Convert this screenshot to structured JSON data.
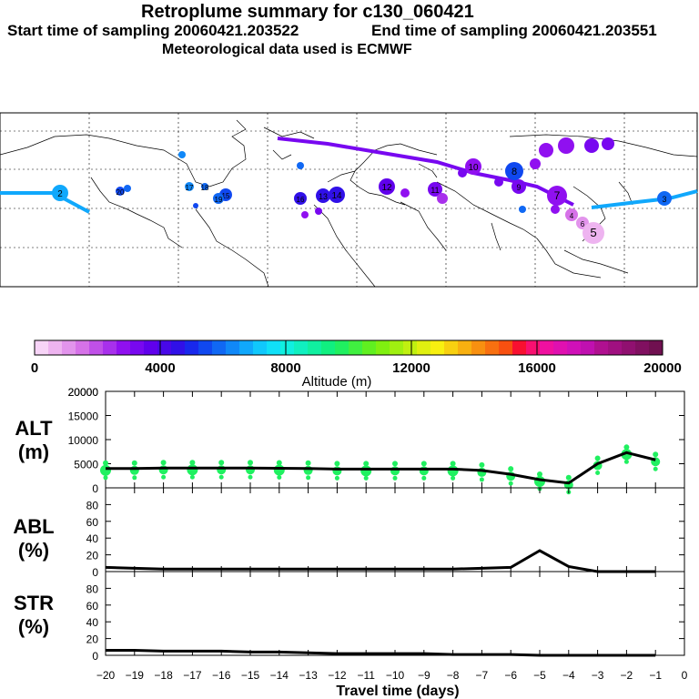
{
  "header": {
    "title": "Retroplume summary for c130_060421",
    "start": "Start time of sampling 20060421.203522",
    "end": "End time of sampling 20060421.203551",
    "met": "Meteorological data used is ECMWF"
  },
  "colorbar": {
    "ticks": [
      "0",
      "4000",
      "8000",
      "12000",
      "16000",
      "20000"
    ],
    "label": "Altitude (m)",
    "colors": [
      "#f7d4f7",
      "#eeb4f0",
      "#e294ec",
      "#d672e8",
      "#c050e8",
      "#a830ec",
      "#9010f0",
      "#7808f0",
      "#6000ec",
      "#4808e8",
      "#3010e8",
      "#1828ec",
      "#1048f0",
      "#1068f4",
      "#1088f8",
      "#10a8fc",
      "#10c8fc",
      "#10e0f8",
      "#10f0e0",
      "#10f0c0",
      "#10f0a0",
      "#10f080",
      "#20f060",
      "#40f040",
      "#60f020",
      "#80f010",
      "#a0f010",
      "#c0f010",
      "#e0f010",
      "#f8f010",
      "#f8d010",
      "#f8b010",
      "#f89010",
      "#f87010",
      "#f85010",
      "#f81030",
      "#f81070",
      "#f010a0",
      "#e010b0",
      "#d010b8",
      "#c010b0",
      "#b01090",
      "#a01080",
      "#901070",
      "#801060",
      "#701050"
    ]
  },
  "panels": {
    "alt_name": "ALT",
    "alt_unit": "(m)",
    "abl_name": "ABL",
    "abl_unit": "(%)",
    "str_name": "STR",
    "str_unit": "(%)"
  },
  "chart_data": [
    {
      "type": "line",
      "title": "ALT (m)",
      "x": [
        -20,
        -19,
        -18,
        -17,
        -16,
        -15,
        -14,
        -13,
        -12,
        -11,
        -10,
        -9,
        -8,
        -7,
        -6,
        -5,
        -4,
        -3,
        -2,
        -1
      ],
      "y": [
        4000,
        4000,
        4100,
        4100,
        4100,
        4100,
        4050,
        4000,
        3900,
        3900,
        3900,
        3900,
        3900,
        3600,
        2800,
        1700,
        1000,
        5000,
        7300,
        5800
      ],
      "ylim": [
        0,
        20000
      ],
      "yticks": [
        0,
        5000,
        10000,
        15000,
        20000
      ]
    },
    {
      "type": "line",
      "title": "ABL (%)",
      "x": [
        -20,
        -19,
        -18,
        -17,
        -16,
        -15,
        -14,
        -13,
        -12,
        -11,
        -10,
        -9,
        -8,
        -7,
        -6,
        -5,
        -4,
        -3,
        -2,
        -1
      ],
      "y": [
        5,
        4,
        3,
        3,
        3,
        3,
        3,
        3,
        3,
        3,
        3,
        3,
        3,
        4,
        5,
        25,
        6,
        0,
        0,
        0
      ],
      "ylim": [
        0,
        100
      ],
      "yticks": [
        0,
        20,
        40,
        60,
        80
      ]
    },
    {
      "type": "line",
      "title": "STR (%)",
      "x": [
        -20,
        -19,
        -18,
        -17,
        -16,
        -15,
        -14,
        -13,
        -12,
        -11,
        -10,
        -9,
        -8,
        -7,
        -6,
        -5,
        -4,
        -3,
        -2,
        -1
      ],
      "y": [
        6,
        6,
        5,
        5,
        5,
        4,
        4,
        3,
        2,
        2,
        2,
        2,
        1,
        1,
        1,
        0,
        0,
        0,
        0,
        0
      ],
      "ylim": [
        0,
        100
      ],
      "yticks": [
        0,
        20,
        40,
        60,
        80
      ]
    }
  ],
  "xaxis": {
    "label": "Travel time (days)",
    "ticks": [
      -20,
      -19,
      -18,
      -17,
      -16,
      -15,
      -14,
      -13,
      -12,
      -11,
      -10,
      -9,
      -8,
      -7,
      -6,
      -5,
      -4,
      -3,
      -2,
      -1,
      0
    ],
    "tick_labels": [
      "−20",
      "−19",
      "−18",
      "−17",
      "−16",
      "−15",
      "−14",
      "−13",
      "−12",
      "−11",
      "−10",
      "−9",
      "−8",
      "−7",
      "−6",
      "−5",
      "−4",
      "−3",
      "−2",
      "−1",
      "0"
    ]
  },
  "map": {
    "markers": [
      {
        "label": "2",
        "color": "#10a8fc"
      },
      {
        "label": "20",
        "color": "#1048f0"
      },
      {
        "label": "17",
        "color": "#1088f8"
      },
      {
        "label": "18",
        "color": "#1068f4"
      },
      {
        "label": "15",
        "color": "#1048f0"
      },
      {
        "label": "16",
        "color": "#3010e8"
      },
      {
        "label": "19",
        "color": "#1068f4"
      },
      {
        "label": "14",
        "color": "#3010e8"
      },
      {
        "label": "13",
        "color": "#3010e8"
      },
      {
        "label": "12",
        "color": "#6000ec"
      },
      {
        "label": "11",
        "color": "#7808f0"
      },
      {
        "label": "10",
        "color": "#9010f0"
      },
      {
        "label": "9",
        "color": "#7808f0"
      },
      {
        "label": "8",
        "color": "#1048f0"
      },
      {
        "label": "7",
        "color": "#9010f0"
      },
      {
        "label": "6",
        "color": "#e294ec"
      },
      {
        "label": "5",
        "color": "#eeb4f0"
      },
      {
        "label": "4",
        "color": "#d672e8"
      },
      {
        "label": "3",
        "color": "#1068f4"
      }
    ]
  }
}
